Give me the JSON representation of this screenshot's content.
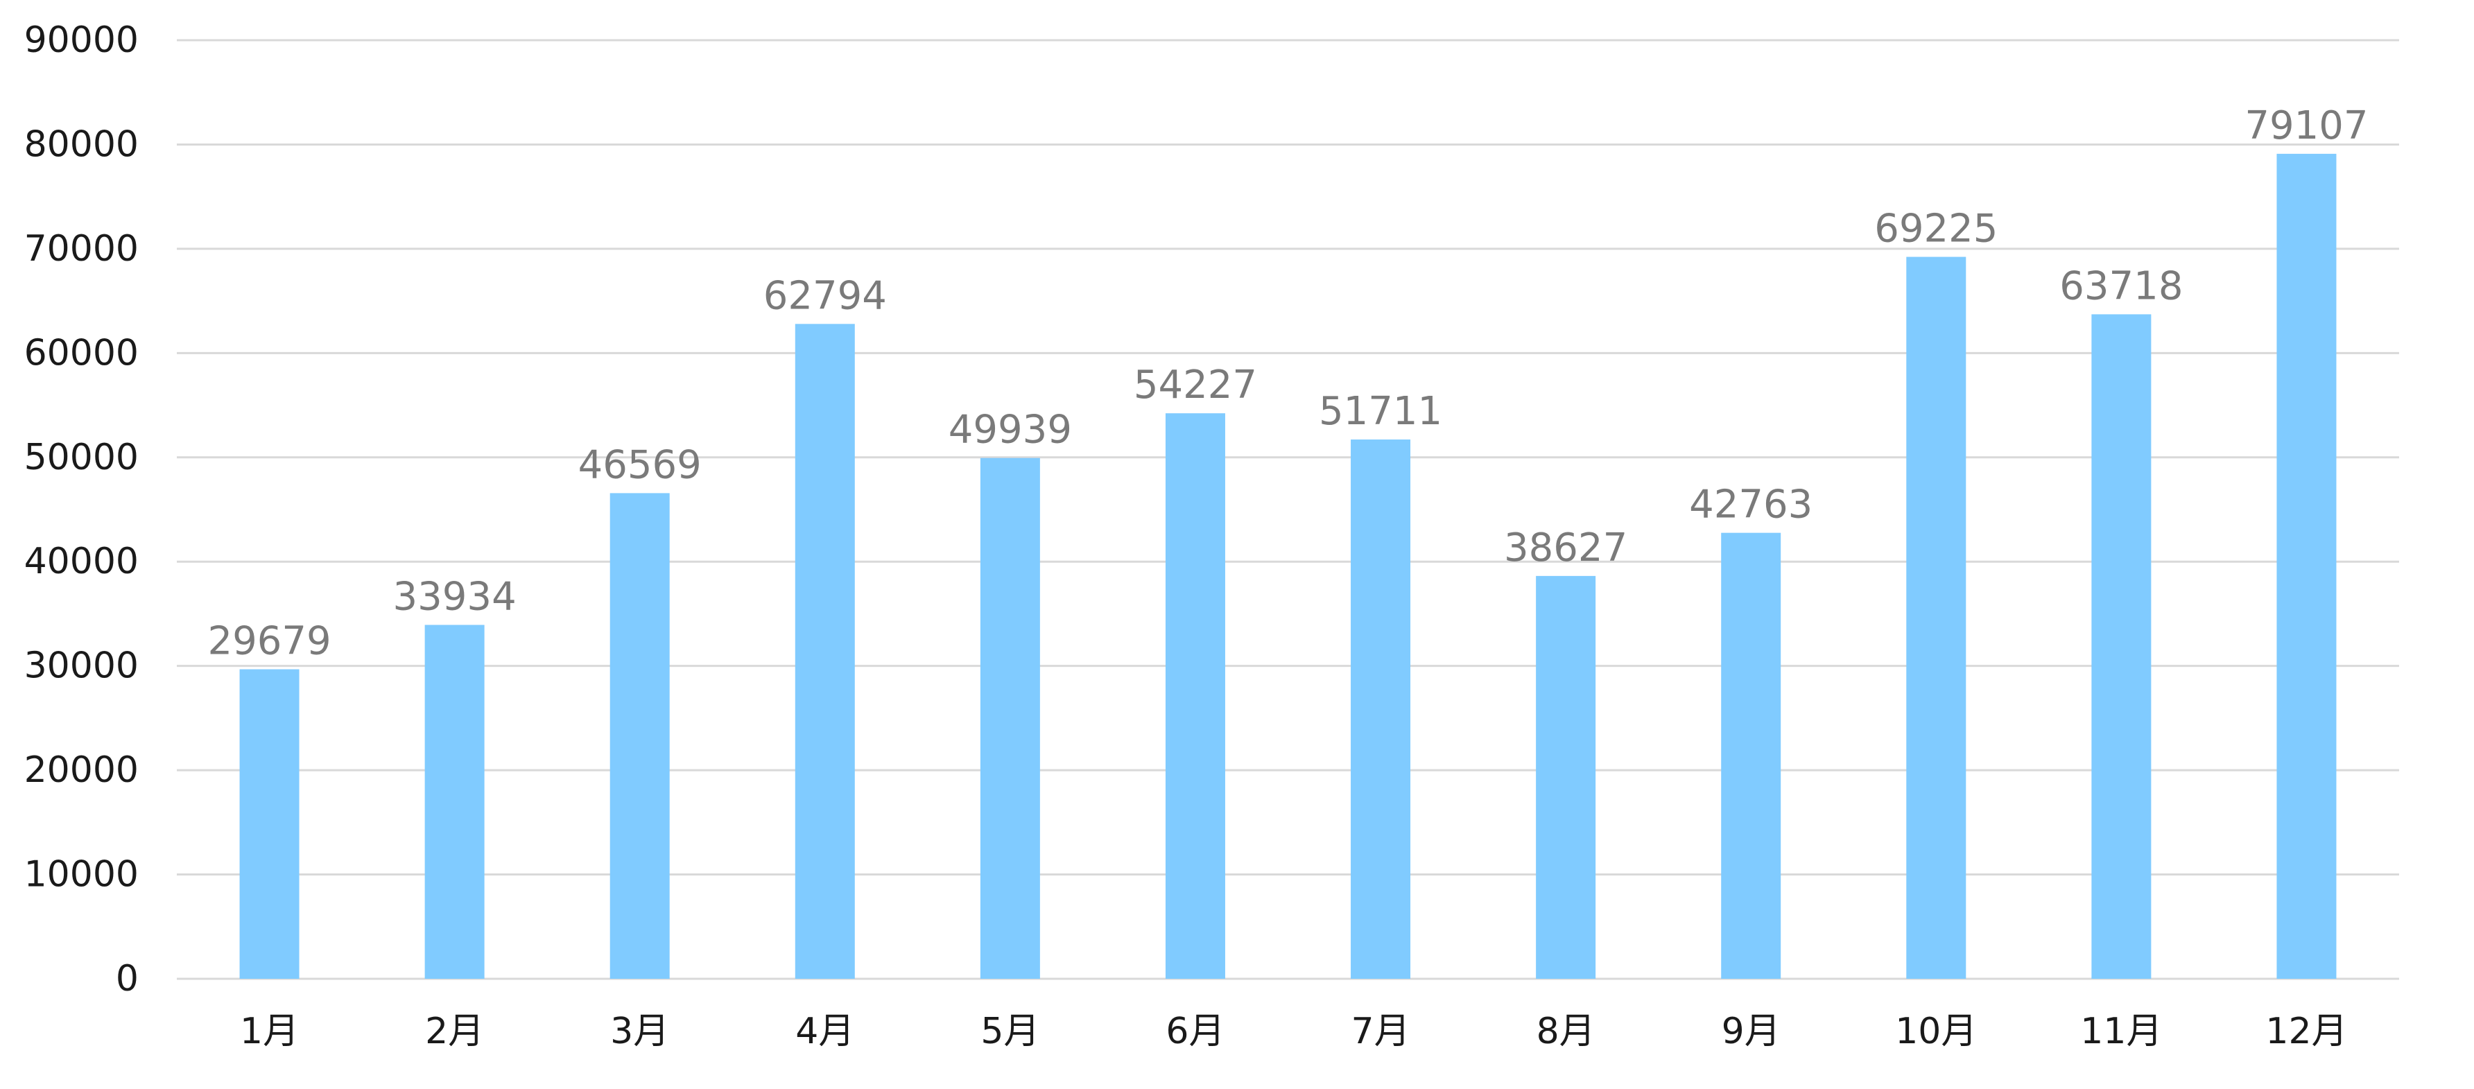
{
  "chart_data": {
    "type": "bar",
    "title": "",
    "xlabel": "",
    "ylabel": "",
    "categories": [
      "1月",
      "2月",
      "3月",
      "4月",
      "5月",
      "6月",
      "7月",
      "8月",
      "9月",
      "10月",
      "11月",
      "12月"
    ],
    "values": [
      29679,
      33934,
      46569,
      62794,
      49939,
      54227,
      51711,
      38627,
      42763,
      69225,
      63718,
      79107
    ],
    "ylim": [
      0,
      90000
    ],
    "y_ticks": [
      0,
      10000,
      20000,
      30000,
      40000,
      50000,
      60000,
      70000,
      80000,
      90000
    ],
    "grid": true,
    "legend": "none",
    "data_labels": true,
    "colors": {
      "bar": "#80cbff",
      "data_label": "#7a7a7a",
      "tick_label": "#1a1a1a",
      "grid": "#d9d9d9"
    }
  }
}
